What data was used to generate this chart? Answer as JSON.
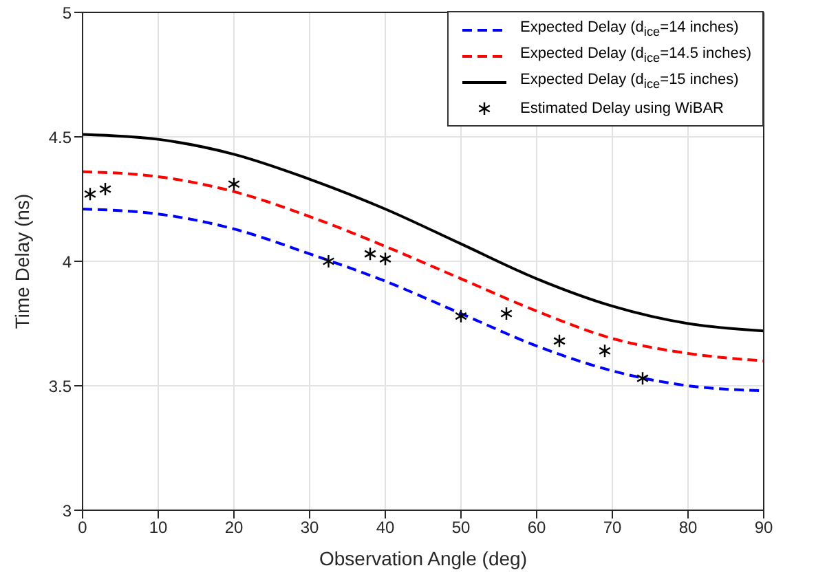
{
  "chart_data": {
    "type": "line",
    "xlabel": "Observation Angle (deg)",
    "ylabel": "Time Delay (ns)",
    "xlim": [
      0,
      90
    ],
    "xticks": [
      0,
      10,
      20,
      30,
      40,
      50,
      60,
      70,
      80,
      90
    ],
    "ylim": [
      3,
      5
    ],
    "yticks": [
      3,
      3.5,
      4,
      4.5,
      5
    ],
    "grid": true,
    "legend": "top right",
    "x": [
      0,
      10,
      20,
      30,
      40,
      50,
      60,
      70,
      80,
      90
    ],
    "series": [
      {
        "name": "Expected Delay (d$_{ice}$=14 inches)",
        "color": "#0000ff",
        "line_style": "dashed",
        "marker": "none",
        "values": [
          4.21,
          4.19,
          4.13,
          4.03,
          3.92,
          3.79,
          3.66,
          3.56,
          3.5,
          3.48
        ]
      },
      {
        "name": "Expected Delay (d$_{ice}$=14.5 inches)",
        "color": "#ff0000",
        "line_style": "dashed",
        "marker": "none",
        "values": [
          4.36,
          4.34,
          4.28,
          4.18,
          4.06,
          3.93,
          3.8,
          3.69,
          3.63,
          3.6
        ]
      },
      {
        "name": "Expected Delay (d$_{ice}$=15 inches)",
        "color": "#000000",
        "line_style": "solid",
        "marker": "none",
        "values": [
          4.51,
          4.49,
          4.43,
          4.33,
          4.21,
          4.07,
          3.93,
          3.82,
          3.75,
          3.72
        ]
      },
      {
        "name": "Estimated Delay using WiBAR",
        "type": "scatter",
        "color": "#000000",
        "marker": "cross",
        "x": [
          1,
          3,
          20,
          32.5,
          38,
          40,
          50,
          56,
          63,
          69,
          74
        ],
        "values": [
          4.27,
          4.29,
          4.31,
          4,
          4.03,
          4.01,
          3.78,
          3.79,
          3.68,
          3.64,
          3.53
        ]
      }
    ]
  }
}
